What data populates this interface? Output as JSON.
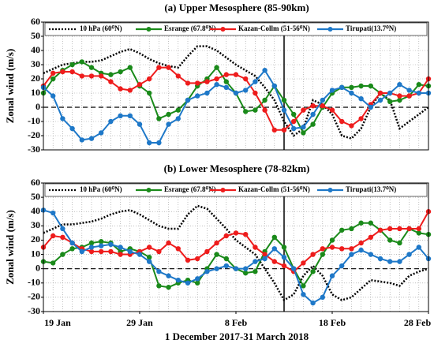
{
  "chart_data": [
    {
      "type": "line",
      "title": "(a) Upper Mesosphere (85-90km)",
      "ylabel": "Zonal wind (m/s)",
      "x": [
        0,
        1,
        2,
        3,
        4,
        5,
        6,
        7,
        8,
        9,
        10,
        11,
        12,
        13,
        14,
        15,
        16,
        17,
        18,
        19,
        20,
        21,
        22,
        23,
        24,
        25,
        26,
        27,
        28,
        29,
        30,
        31,
        32,
        33,
        34,
        35,
        36,
        37,
        38,
        39,
        40
      ],
      "xlim": [
        0,
        40
      ],
      "ylim": [
        -30,
        60
      ],
      "yticks": [
        -30,
        -20,
        -10,
        0,
        10,
        20,
        30,
        40,
        50,
        60
      ],
      "grid": true,
      "hline": 0,
      "vline": 25,
      "series": [
        {
          "name": "10 hPa (60⁰N)",
          "color": "#000000",
          "style": "dotted",
          "markers": false,
          "values": [
            24,
            27,
            30,
            31,
            32,
            32,
            33,
            36,
            39,
            41,
            38,
            34,
            31,
            29,
            28,
            36,
            43,
            43,
            40,
            35,
            30,
            26,
            22,
            14,
            5,
            -10,
            -20,
            -15,
            5,
            2,
            -5,
            -20,
            -22,
            -15,
            0,
            10,
            5,
            -15,
            -10,
            -5,
            0
          ]
        },
        {
          "name": "Esrange (67.8⁰N)",
          "color": "#1a8a1a",
          "style": "solid",
          "markers": true,
          "values": [
            10,
            20,
            26,
            30,
            32,
            28,
            24,
            23,
            25,
            28,
            15,
            10,
            -8,
            -5,
            -2,
            5,
            15,
            20,
            28,
            18,
            10,
            -3,
            -2,
            5,
            15,
            5,
            -5,
            -18,
            -12,
            0,
            10,
            14,
            14,
            15,
            15,
            10,
            4,
            5,
            8,
            16,
            15
          ]
        },
        {
          "name": "Kazan-Collm (51-56⁰N)",
          "color": "#ee1c1c",
          "style": "solid",
          "markers": true,
          "values": [
            15,
            24,
            25,
            25,
            22,
            22,
            22,
            18,
            13,
            12,
            16,
            20,
            28,
            28,
            22,
            17,
            17,
            18,
            20,
            23,
            23,
            20,
            10,
            -2,
            -16,
            -16,
            -10,
            -2,
            1,
            1,
            -2,
            -10,
            -13,
            -8,
            2,
            10,
            10,
            8,
            8,
            10,
            20
          ]
        },
        {
          "name": "Tirupati(13.7⁰N)",
          "color": "#1e78c8",
          "style": "solid",
          "markers": true,
          "values": [
            14,
            8,
            -8,
            -15,
            -23,
            -22,
            -18,
            -10,
            -6,
            -6,
            -12,
            -25,
            -25,
            -12,
            -8,
            5,
            8,
            10,
            16,
            14,
            10,
            12,
            18,
            26,
            15,
            -2,
            -15,
            -14,
            -5,
            5,
            12,
            14,
            10,
            6,
            0,
            5,
            10,
            16,
            12,
            10,
            10
          ]
        }
      ]
    },
    {
      "type": "line",
      "title": "(b) Lower Mesosphere (78-82km)",
      "ylabel": "Zonal wind (m/s)",
      "xlabel": "1 December 2017-31 March 2018",
      "x": [
        0,
        1,
        2,
        3,
        4,
        5,
        6,
        7,
        8,
        9,
        10,
        11,
        12,
        13,
        14,
        15,
        16,
        17,
        18,
        19,
        20,
        21,
        22,
        23,
        24,
        25,
        26,
        27,
        28,
        29,
        30,
        31,
        32,
        33,
        34,
        35,
        36,
        37,
        38,
        39,
        40
      ],
      "xlim": [
        0,
        40
      ],
      "xticks": [
        {
          "value": 0,
          "label": "19 Jan"
        },
        {
          "value": 10,
          "label": "29 Jan"
        },
        {
          "value": 20,
          "label": "8 Feb"
        },
        {
          "value": 30,
          "label": "18 Feb"
        },
        {
          "value": 40,
          "label": "28 Feb"
        }
      ],
      "ylim": [
        -30,
        60
      ],
      "yticks": [
        -30,
        -20,
        -10,
        0,
        10,
        20,
        30,
        40,
        50,
        60
      ],
      "grid": true,
      "hline": 0,
      "vline": 25,
      "series": [
        {
          "name": "10 hPa (60⁰N)",
          "color": "#000000",
          "style": "dotted",
          "markers": false,
          "values": [
            25,
            28,
            31,
            31,
            32,
            33,
            35,
            38,
            40,
            41,
            38,
            34,
            30,
            28,
            28,
            38,
            44,
            42,
            35,
            28,
            20,
            15,
            10,
            0,
            -10,
            -22,
            -18,
            -5,
            2,
            -5,
            -18,
            -22,
            -20,
            -14,
            -8,
            -9,
            -10,
            -12,
            -5,
            -2,
            0
          ]
        },
        {
          "name": "Esrange (67.8⁰N)",
          "color": "#1a8a1a",
          "style": "solid",
          "markers": true,
          "values": [
            5,
            4,
            10,
            14,
            15,
            18,
            19,
            18,
            12,
            14,
            12,
            8,
            -12,
            -13,
            -10,
            -8,
            -10,
            0,
            10,
            7,
            0,
            -3,
            -2,
            12,
            22,
            15,
            0,
            -12,
            -2,
            10,
            20,
            27,
            28,
            32,
            32,
            27,
            20,
            18,
            28,
            25,
            24
          ]
        },
        {
          "name": "Kazan-Collm (51-56⁰N)",
          "color": "#ee1c1c",
          "style": "solid",
          "markers": true,
          "values": [
            15,
            23,
            22,
            18,
            14,
            12,
            12,
            12,
            10,
            10,
            12,
            15,
            12,
            18,
            14,
            6,
            7,
            12,
            18,
            23,
            25,
            24,
            15,
            10,
            5,
            2,
            -2,
            4,
            10,
            14,
            15,
            14,
            14,
            18,
            22,
            27,
            28,
            28,
            28,
            28,
            40
          ]
        },
        {
          "name": "Tirupati(13.7⁰N)",
          "color": "#1e78c8",
          "style": "solid",
          "markers": true,
          "values": [
            41,
            39,
            28,
            18,
            12,
            15,
            16,
            17,
            15,
            12,
            10,
            5,
            -2,
            -5,
            -8,
            -10,
            -7,
            -2,
            0,
            2,
            0,
            0,
            5,
            7,
            14,
            8,
            0,
            -18,
            -24,
            -20,
            -5,
            2,
            10,
            13,
            10,
            7,
            5,
            5,
            10,
            15,
            7
          ]
        }
      ]
    }
  ]
}
